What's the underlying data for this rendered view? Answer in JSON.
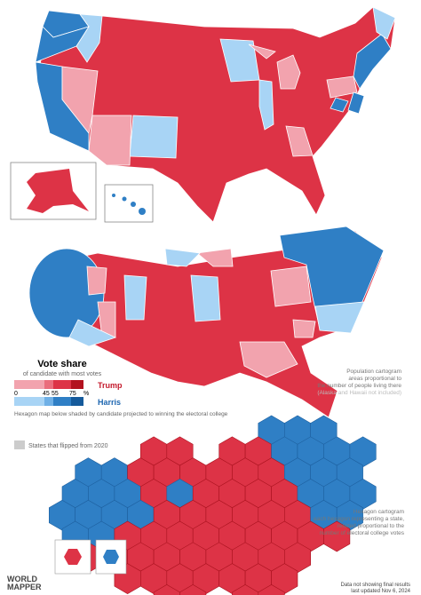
{
  "legend": {
    "title": "Vote share",
    "subtitle": "of candidate with most votes",
    "trump": "Trump",
    "harris": "Harris",
    "ticks": [
      "0",
      "45",
      "55",
      "75"
    ],
    "unit": "%"
  },
  "notes": {
    "hexagon_intro": "Hexagon map below shaded by candidate projected to winning the electoral college",
    "flipped": "States that flipped from 2020",
    "population": [
      "Population cartogram",
      "areas proportional to",
      "the number of people living there",
      "(Alaska and Hawaii not included)"
    ],
    "hexagon": [
      "Hexagon cartogram",
      "each hexagon representing a state,",
      "resized proportional to the",
      "number of electoral college votes"
    ]
  },
  "footer": [
    "Data not showing final results",
    "last updated Nov 6, 2024"
  ],
  "logo": [
    "WORLD",
    "MAPPER"
  ]
}
